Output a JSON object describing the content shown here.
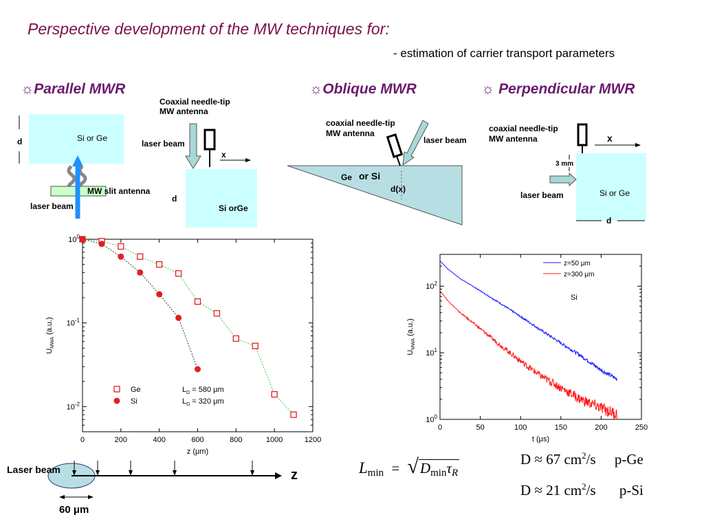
{
  "header": {
    "title": "Perspective development of the MW techniques for:",
    "subtitle": "- estimation of carrier transport parameters"
  },
  "sections": {
    "parallel": {
      "symbol": "☼",
      "label": "Parallel MWR"
    },
    "oblique": {
      "symbol": "☼",
      "label": "Oblique  MWR"
    },
    "perpendicular": {
      "symbol": "☼",
      "label": "Perpendicular  MWR"
    }
  },
  "parallel_diagram": {
    "d_label": "d",
    "sample_label": "Si or  Ge",
    "slit_label": "MW slit antenna",
    "laser_label": "laser beam"
  },
  "parallel_diagram2": {
    "antenna_label_1": "Coaxial needle-tip",
    "antenna_label_2": "MW antenna",
    "laser_label": "laser beam",
    "x_label": "x",
    "d_label": "d",
    "sample_label": "Si orGe"
  },
  "oblique_diagram": {
    "antenna_label_1": "coaxial needle-tip",
    "antenna_label_2": "MW antenna",
    "laser_label": "laser beam",
    "sample_label_1": "Ge",
    "sample_label_2": "or Si",
    "dx_label": "d(x)"
  },
  "perpendicular_diagram": {
    "antenna_label_1": "coaxial needle-tip",
    "antenna_label_2": "MW antenna",
    "x_label": "x",
    "mm_label": "3 mm",
    "laser_label": "laser beam",
    "sample_label": "Si or  Ge",
    "d_label": "d"
  },
  "bottom_diagram": {
    "laser_label": "Laser beam",
    "z_label": "z",
    "width_label": "60 μm"
  },
  "formula": {
    "lhs": "L",
    "lhs_sub": "min",
    "equals": "=",
    "rhs_d": "D",
    "rhs_d_sub": "min",
    "rhs_tau": "τ",
    "rhs_tau_sub": "R"
  },
  "results": [
    {
      "prefix": "D ≈ 67  cm",
      "sup": "2",
      "suffix": "/s",
      "material": "p-Ge"
    },
    {
      "prefix": "D ≈ 21  cm",
      "sup": "2",
      "suffix": "/s",
      "material": "p-Si"
    }
  ],
  "chart_data": [
    {
      "type": "scatter",
      "xlabel": "z (μm)",
      "ylabel": "U_MWA (a.u.)",
      "ylog": true,
      "xlim": [
        0,
        1200
      ],
      "ylim": [
        0.005,
        1
      ],
      "x_ticks": [
        "0",
        "200",
        "400",
        "600",
        "800",
        "1000",
        "1200"
      ],
      "y_ticks": [
        {
          "base": "10",
          "exp": "0",
          "value": 1
        },
        {
          "base": "10",
          "exp": "-1",
          "value": 0.1
        },
        {
          "base": "10",
          "exp": "-2",
          "value": 0.01
        }
      ],
      "legend_position": "bottom-left",
      "series": [
        {
          "name": "Ge",
          "marker": "open-square",
          "color": "#e02020",
          "annotation": "L_D = 580 μm",
          "fit_color": "#33cc33",
          "x": [
            0,
            100,
            200,
            300,
            400,
            500,
            600,
            700,
            800,
            900,
            1000,
            1100
          ],
          "y": [
            1.0,
            0.95,
            0.82,
            0.62,
            0.5,
            0.39,
            0.18,
            0.13,
            0.065,
            0.053,
            0.014,
            0.008
          ]
        },
        {
          "name": "Si",
          "marker": "filled-circle",
          "color": "#e02020",
          "annotation": "L_D = 320 μm",
          "fit_color": "#333333",
          "x": [
            0,
            100,
            200,
            300,
            400,
            500,
            600
          ],
          "y": [
            1.0,
            0.88,
            0.62,
            0.4,
            0.22,
            0.115,
            0.028
          ]
        }
      ]
    },
    {
      "type": "line",
      "xlabel": "t (μs)",
      "ylabel": "U_MWA (a.u.)",
      "ylog": true,
      "xlim": [
        0,
        250
      ],
      "ylim": [
        1,
        300
      ],
      "x_ticks": [
        "0",
        "50",
        "100",
        "150",
        "200",
        "250"
      ],
      "y_ticks": [
        {
          "base": "10",
          "exp": "0",
          "value": 1
        },
        {
          "base": "10",
          "exp": "1",
          "value": 10
        },
        {
          "base": "10",
          "exp": "2",
          "value": 100
        }
      ],
      "annotation": "Si",
      "legend_position": "top-right",
      "series": [
        {
          "name": "z=50 μm",
          "color": "#1a1aff",
          "x": [
            0,
            10,
            25,
            50,
            75,
            100,
            125,
            150,
            175,
            200,
            220
          ],
          "y": [
            240,
            180,
            130,
            85,
            55,
            35,
            22,
            14,
            9,
            5.5,
            4
          ]
        },
        {
          "name": "z=300 μm",
          "color": "#ff1a1a",
          "x": [
            0,
            10,
            25,
            50,
            75,
            100,
            125,
            150,
            175,
            200,
            220
          ],
          "y": [
            85,
            60,
            40,
            23,
            13,
            7.5,
            4.5,
            3,
            2,
            1.5,
            1.2
          ]
        }
      ]
    }
  ]
}
